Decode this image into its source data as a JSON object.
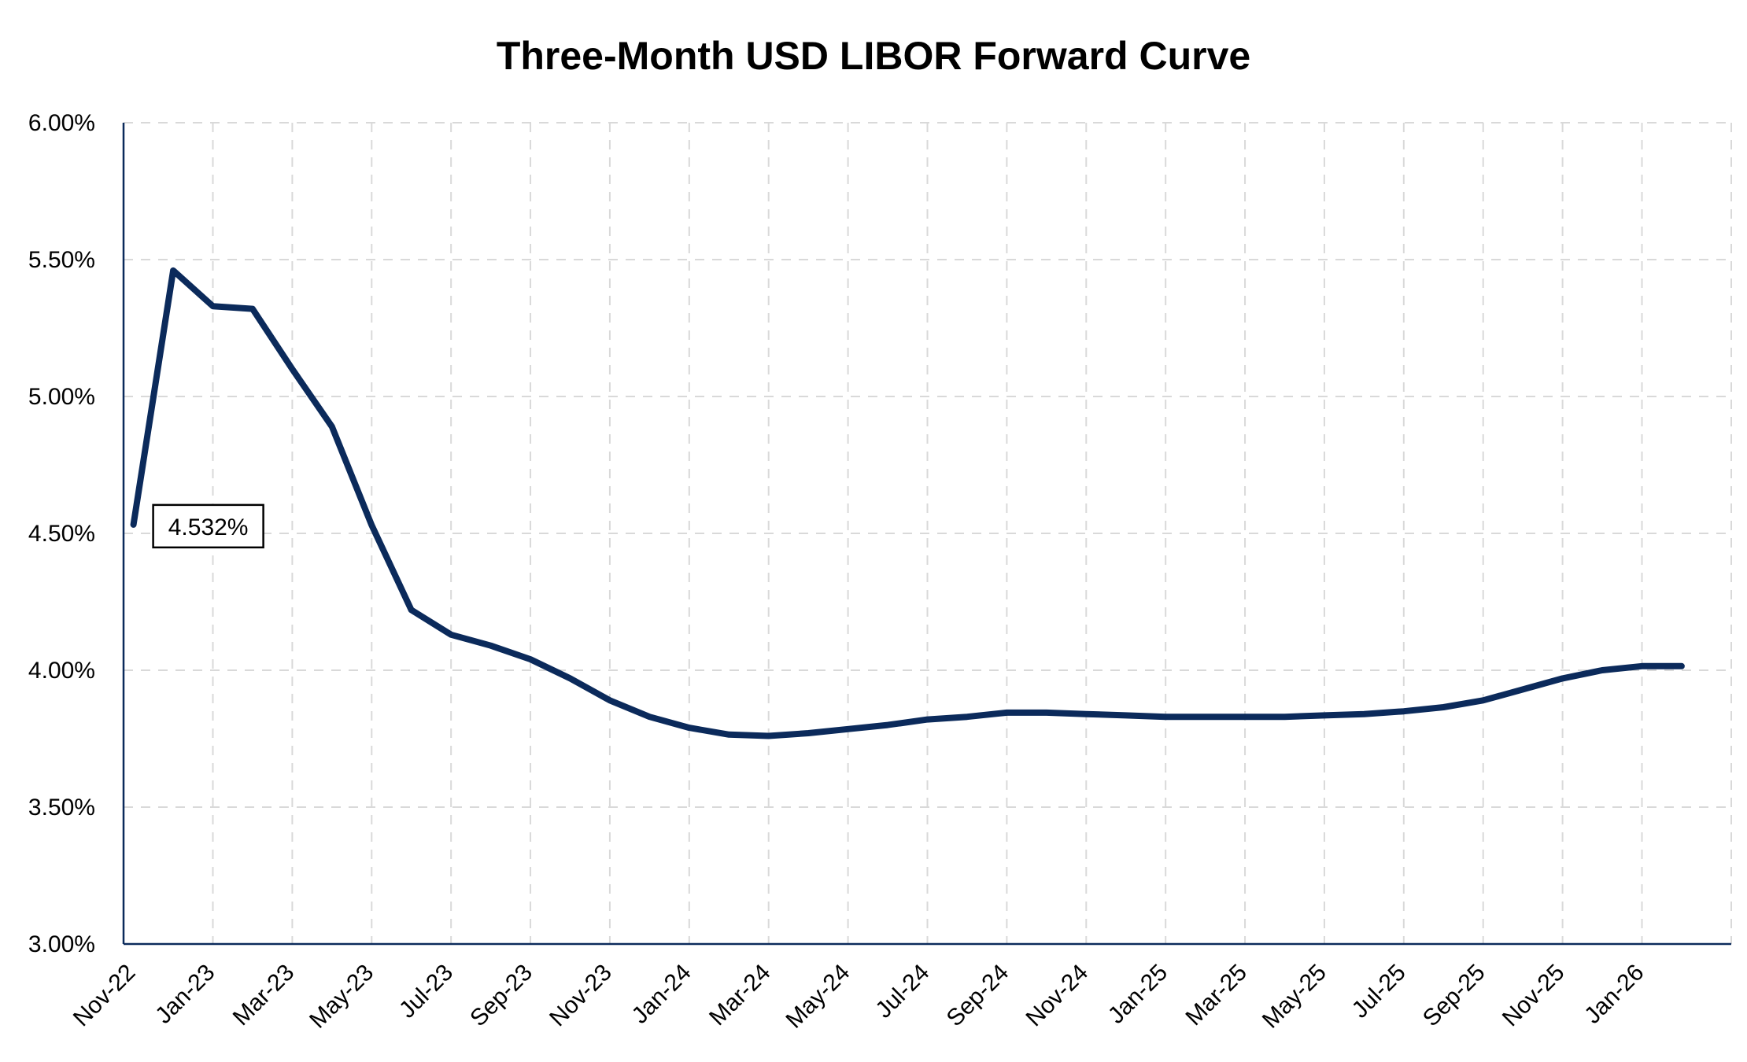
{
  "chart_data": {
    "type": "line",
    "title": "Three-Month USD LIBOR Forward Curve",
    "xlabel": "",
    "ylabel": "",
    "ylim": [
      0.03,
      0.06
    ],
    "yticks": [
      {
        "value": 0.03,
        "label": "3.00%"
      },
      {
        "value": 0.035,
        "label": "3.50%"
      },
      {
        "value": 0.04,
        "label": "4.00%"
      },
      {
        "value": 0.045,
        "label": "4.50%"
      },
      {
        "value": 0.05,
        "label": "5.00%"
      },
      {
        "value": 0.055,
        "label": "5.50%"
      },
      {
        "value": 0.06,
        "label": "6.00%"
      }
    ],
    "xlim": [
      "2022-11",
      "2026-03"
    ],
    "xticks": [
      "Nov-22",
      "Jan-23",
      "Mar-23",
      "May-23",
      "Jul-23",
      "Sep-23",
      "Nov-23",
      "Jan-24",
      "Mar-24",
      "May-24",
      "Jul-24",
      "Sep-24",
      "Nov-24",
      "Jan-25",
      "Mar-25",
      "May-25",
      "Jul-25",
      "Sep-25",
      "Nov-25",
      "Jan-26"
    ],
    "grid": true,
    "legend": "none",
    "series": [
      {
        "color": "#0b2a5b",
        "x": [
          "2022-11",
          "2022-12",
          "2023-01",
          "2023-02",
          "2023-03",
          "2023-04",
          "2023-05",
          "2023-06",
          "2023-07",
          "2023-08",
          "2023-09",
          "2023-10",
          "2023-11",
          "2023-12",
          "2024-01",
          "2024-02",
          "2024-03",
          "2024-04",
          "2024-05",
          "2024-06",
          "2024-07",
          "2024-08",
          "2024-09",
          "2024-10",
          "2024-11",
          "2024-12",
          "2025-01",
          "2025-02",
          "2025-03",
          "2025-04",
          "2025-05",
          "2025-06",
          "2025-07",
          "2025-08",
          "2025-09",
          "2025-10",
          "2025-11",
          "2025-12",
          "2026-01",
          "2026-02"
        ],
        "values": [
          0.04532,
          0.0546,
          0.0533,
          0.0532,
          0.051,
          0.0489,
          0.0453,
          0.0422,
          0.0413,
          0.0409,
          0.0404,
          0.0397,
          0.0389,
          0.0383,
          0.0379,
          0.03765,
          0.0376,
          0.0377,
          0.03785,
          0.038,
          0.0382,
          0.0383,
          0.03845,
          0.03845,
          0.0384,
          0.03835,
          0.0383,
          0.0383,
          0.0383,
          0.0383,
          0.03835,
          0.0384,
          0.0385,
          0.03865,
          0.0389,
          0.0393,
          0.0397,
          0.04,
          0.04015,
          0.04015
        ]
      }
    ],
    "annotations": [
      {
        "text": "4.532%",
        "x": "2022-11",
        "y": 0.04532
      }
    ]
  }
}
